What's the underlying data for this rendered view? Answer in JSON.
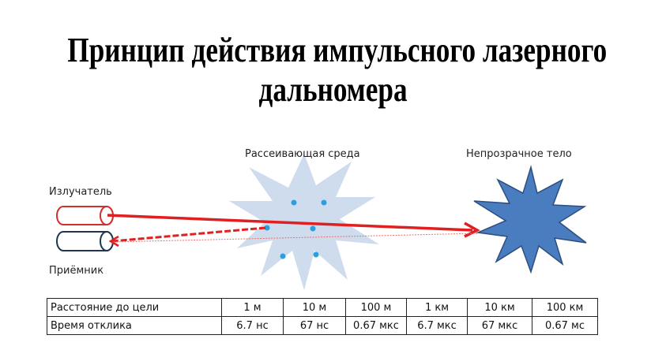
{
  "title": {
    "line1": "Принцип действия импульсного лазерного",
    "line2": "дальномера"
  },
  "labels": {
    "scattering_medium": "Рассеивающая среда",
    "opaque_body": "Непрозрачное тело",
    "emitter": "Излучатель",
    "receiver": "Приёмник"
  },
  "colors": {
    "beam": "#e02020",
    "emitter": "#d03030",
    "receiver": "#1f3550",
    "medium": "#cfdcee",
    "particles": "#2aa0e0",
    "target": "#4a7cc0"
  },
  "table": {
    "rows": [
      {
        "header": "Расстояние до цели",
        "cells": [
          "1 м",
          "10 м",
          "100 м",
          "1 км",
          "10 км",
          "100 км"
        ]
      },
      {
        "header": "Время отклика",
        "cells": [
          "6.7 нс",
          "67 нс",
          "0.67 мкс",
          "6.7 мкс",
          "67 мкс",
          "0.67 мс"
        ]
      }
    ]
  }
}
